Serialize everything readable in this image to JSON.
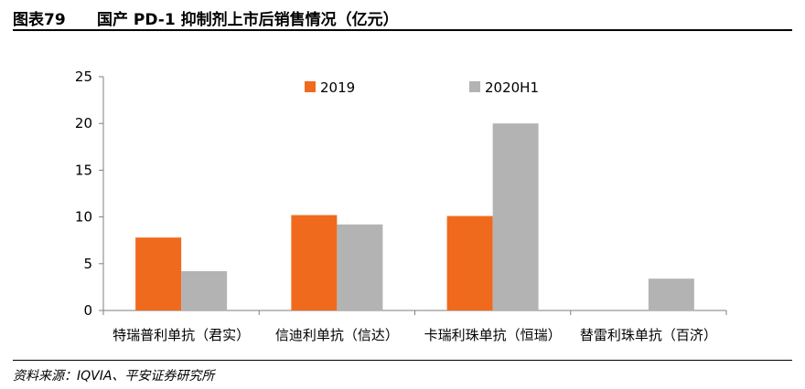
{
  "header": {
    "label": "图表79",
    "title": "国产 PD-1 抑制剂上市后销售情况（亿元）"
  },
  "footer": {
    "source": "资料来源：IQVIA、平安证券研究所"
  },
  "colors": {
    "series_2019": "#f06a1e",
    "series_2020H1": "#b3b3b3",
    "axis": "#7f7f7f"
  },
  "chart_data": {
    "type": "bar",
    "categories": [
      "特瑞普利单抗（君实）",
      "信迪利单抗（信达）",
      "卡瑞利珠单抗（恒瑞）",
      "替雷利珠单抗（百济）"
    ],
    "series": [
      {
        "name": "2019",
        "values": [
          7.8,
          10.2,
          10.1,
          null
        ]
      },
      {
        "name": "2020H1",
        "values": [
          4.2,
          9.2,
          20.0,
          3.4
        ]
      }
    ],
    "yticks": [
      "0",
      "5",
      "10",
      "15",
      "20",
      "25"
    ],
    "ylim": [
      0,
      25
    ],
    "grid": false,
    "legend_position": "top"
  }
}
